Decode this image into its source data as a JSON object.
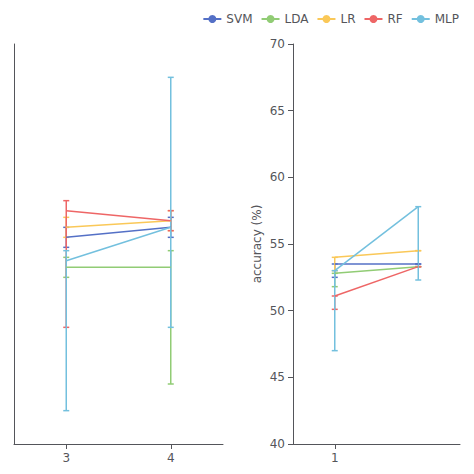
{
  "chart_data": [
    {
      "type": "line",
      "x": [
        3,
        4
      ],
      "xlim": [
        2.5,
        4.5
      ],
      "xticks": [
        3,
        4
      ],
      "ylim": [
        50,
        62
      ],
      "tick_labels": "x",
      "grid": false,
      "legend": "upper right",
      "series": [
        {
          "name": "SVM",
          "values": [
            56.2,
            56.5
          ],
          "errors": [
            [
              0.3,
              0.3
            ],
            [
              0.3,
              0.3
            ]
          ]
        },
        {
          "name": "LDA",
          "values": [
            55.3,
            55.3
          ],
          "errors": [
            [
              0.3,
              0.3
            ],
            [
              3.5,
              0.5
            ]
          ]
        },
        {
          "name": "LR",
          "values": [
            56.5,
            56.7
          ],
          "errors": [
            [
              0.3,
              0.3
            ],
            [
              0.3,
              0.3
            ]
          ]
        },
        {
          "name": "RF",
          "values": [
            57.0,
            56.7
          ],
          "errors": [
            [
              3.5,
              0.3
            ],
            [
              0.3,
              0.3
            ]
          ]
        },
        {
          "name": "MLP",
          "values": [
            55.5,
            56.5
          ],
          "errors": [
            [
              4.5,
              0.3
            ],
            [
              3.0,
              4.5
            ]
          ]
        }
      ]
    },
    {
      "type": "line",
      "x": [
        1,
        2
      ],
      "xlim": [
        0.5,
        2.5
      ],
      "xticks": [
        1
      ],
      "ylim": [
        40,
        70
      ],
      "yticks": [
        40,
        45,
        50,
        55,
        60,
        65,
        70
      ],
      "ylabel": "accuracy (%)",
      "grid": false,
      "series": [
        {
          "name": "SVM",
          "values": [
            53.5,
            53.5
          ],
          "errors": [
            [
              1.0,
              0.0
            ],
            [
              0.0,
              0.0
            ]
          ]
        },
        {
          "name": "LDA",
          "values": [
            52.8,
            53.3
          ],
          "errors": [
            [
              1.0,
              0.0
            ],
            [
              0.0,
              0.0
            ]
          ]
        },
        {
          "name": "LR",
          "values": [
            54.0,
            54.5
          ],
          "errors": [
            [
              1.0,
              0.0
            ],
            [
              0.0,
              0.0
            ]
          ]
        },
        {
          "name": "RF",
          "values": [
            51.1,
            53.3
          ],
          "errors": [
            [
              1.0,
              0.0
            ],
            [
              0.0,
              0.0
            ]
          ]
        },
        {
          "name": "MLP",
          "values": [
            53.0,
            57.8
          ],
          "errors": [
            [
              6.0,
              0.0
            ],
            [
              5.5,
              0.0
            ]
          ]
        }
      ]
    }
  ]
}
